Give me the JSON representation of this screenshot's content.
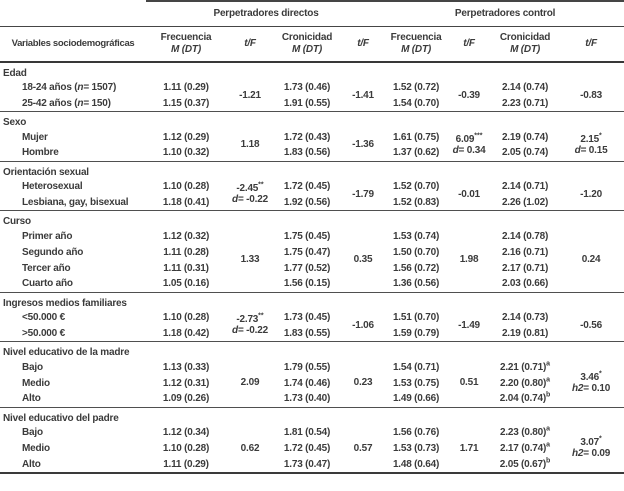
{
  "table": {
    "corner_header": "Variables sociodemográficas",
    "group_headers": [
      "Perpetradores directos",
      "Perpetradores control"
    ],
    "sub_headers": [
      {
        "top": "Frecuencia",
        "bottom": "M (DT)"
      },
      {
        "top": "t/F"
      },
      {
        "top": "Cronicidad",
        "bottom": "M (DT)"
      },
      {
        "top": "t/F"
      },
      {
        "top": "Frecuencia",
        "bottom": "M (DT)"
      },
      {
        "top": "t/F"
      },
      {
        "top": "Cronicidad",
        "bottom": "M (DT)"
      },
      {
        "top": "t/F"
      }
    ],
    "sections": [
      {
        "title": "Edad",
        "rows": [
          {
            "label": "18-24 años (n= 1507)",
            "cells": [
              "1.11 (0.29)",
              "1.73 (0.46)",
              "1.52 (0.72)",
              "2.14 (0.74)"
            ]
          },
          {
            "label": "25-42 años (n= 150)",
            "cells": [
              "1.15 (0.37)",
              "1.91 (0.55)",
              "1.54 (0.70)",
              "2.23 (0.71)"
            ]
          }
        ],
        "stats": [
          [
            "-1.21"
          ],
          [
            "-1.41"
          ],
          [
            "-0.39"
          ],
          [
            "-0.83"
          ]
        ]
      },
      {
        "title": "Sexo",
        "rows": [
          {
            "label": "Mujer",
            "cells": [
              "1.12 (0.29)",
              "1.72 (0.43)",
              "1.61 (0.75)",
              "2.19 (0.74)"
            ]
          },
          {
            "label": "Hombre",
            "cells": [
              "1.10 (0.32)",
              "1.83 (0.56)",
              "1.37 (0.62)",
              "2.05 (0.74)"
            ]
          }
        ],
        "stats": [
          [
            "1.18"
          ],
          [
            "-1.36"
          ],
          [
            "6.09***",
            "d= 0.34"
          ],
          [
            "2.15*",
            "d= 0.15"
          ]
        ]
      },
      {
        "title": "Orientación sexual",
        "rows": [
          {
            "label": "Heterosexual",
            "cells": [
              "1.10 (0.28)",
              "1.72 (0.45)",
              "1.52 (0.70)",
              "2.14 (0.71)"
            ]
          },
          {
            "label": "Lesbiana, gay, bisexual",
            "cells": [
              "1.18 (0.41)",
              "1.92 (0.56)",
              "1.52 (0.83)",
              "2.26 (1.02)"
            ]
          }
        ],
        "stats": [
          [
            "-2.45**",
            "d= -0.22"
          ],
          [
            "-1.79"
          ],
          [
            "-0.01"
          ],
          [
            "-1.20"
          ]
        ]
      },
      {
        "title": "Curso",
        "rows": [
          {
            "label": "Primer año",
            "cells": [
              "1.12 (0.32)",
              "1.75 (0.45)",
              "1.53 (0.74)",
              "2.14 (0.78)"
            ]
          },
          {
            "label": "Segundo año",
            "cells": [
              "1.11 (0.28)",
              "1.75 (0.47)",
              "1.50 (0.70)",
              "2.16 (0.71)"
            ]
          },
          {
            "label": "Tercer año",
            "cells": [
              "1.11 (0.31)",
              "1.77 (0.52)",
              "1.56 (0.72)",
              "2.17 (0.71)"
            ]
          },
          {
            "label": "Cuarto año",
            "cells": [
              "1.05 (0.16)",
              "1.56 (0.15)",
              "1.36 (0.56)",
              "2.03 (0.66)"
            ]
          }
        ],
        "stats": [
          [
            "1.33"
          ],
          [
            "0.35"
          ],
          [
            "1.98"
          ],
          [
            "0.24"
          ]
        ]
      },
      {
        "title": "Ingresos medios familiares",
        "rows": [
          {
            "label": "<50.000 €",
            "cells": [
              "1.10 (0.28)",
              "1.73 (0.45)",
              "1.51 (0.70)",
              "2.14 (0.73)"
            ]
          },
          {
            "label": ">50.000 €",
            "cells": [
              "1.18 (0.42)",
              "1.83 (0.55)",
              "1.59 (0.79)",
              "2.19 (0.81)"
            ]
          }
        ],
        "stats": [
          [
            "-2.73**",
            "d= -0.22"
          ],
          [
            "-1.06"
          ],
          [
            "-1.49"
          ],
          [
            "-0.56"
          ]
        ]
      },
      {
        "title": "Nivel educativo de la madre",
        "rows": [
          {
            "label": "Bajo",
            "cells": [
              "1.13 (0.33)",
              "1.79 (0.55)",
              "1.54 (0.71)",
              {
                "t": "2.21 (0.71)",
                "sup": "a"
              }
            ]
          },
          {
            "label": "Medio",
            "cells": [
              "1.12 (0.31)",
              "1.74 (0.46)",
              "1.53 (0.75)",
              {
                "t": "2.20 (0.80)",
                "sup": "a"
              }
            ]
          },
          {
            "label": "Alto",
            "cells": [
              "1.09 (0.26)",
              "1.73 (0.40)",
              "1.49 (0.66)",
              {
                "t": "2.04 (0.74)",
                "sup": "b"
              }
            ]
          }
        ],
        "stats": [
          [
            "2.09"
          ],
          [
            "0.23"
          ],
          [
            "0.51"
          ],
          [
            "3.46*",
            "h2= 0.10"
          ]
        ]
      },
      {
        "title": "Nivel educativo del padre",
        "rows": [
          {
            "label": "Bajo",
            "cells": [
              "1.12 (0.34)",
              "1.81 (0.54)",
              "1.56 (0.76)",
              {
                "t": "2.23 (0.80)",
                "sup": "a"
              }
            ]
          },
          {
            "label": "Medio",
            "cells": [
              "1.10 (0.28)",
              "1.72 (0.45)",
              "1.53 (0.73)",
              {
                "t": "2.17 (0.74)",
                "sup": "a"
              }
            ]
          },
          {
            "label": "Alto",
            "cells": [
              "1.11 (0.29)",
              "1.73 (0.47)",
              "1.48 (0.64)",
              {
                "t": "2.05 (0.67)",
                "sup": "b"
              }
            ]
          }
        ],
        "stats": [
          [
            "0.62"
          ],
          [
            "0.57"
          ],
          [
            "1.71"
          ],
          [
            "3.07*",
            "h2= 0.09"
          ]
        ]
      }
    ]
  }
}
